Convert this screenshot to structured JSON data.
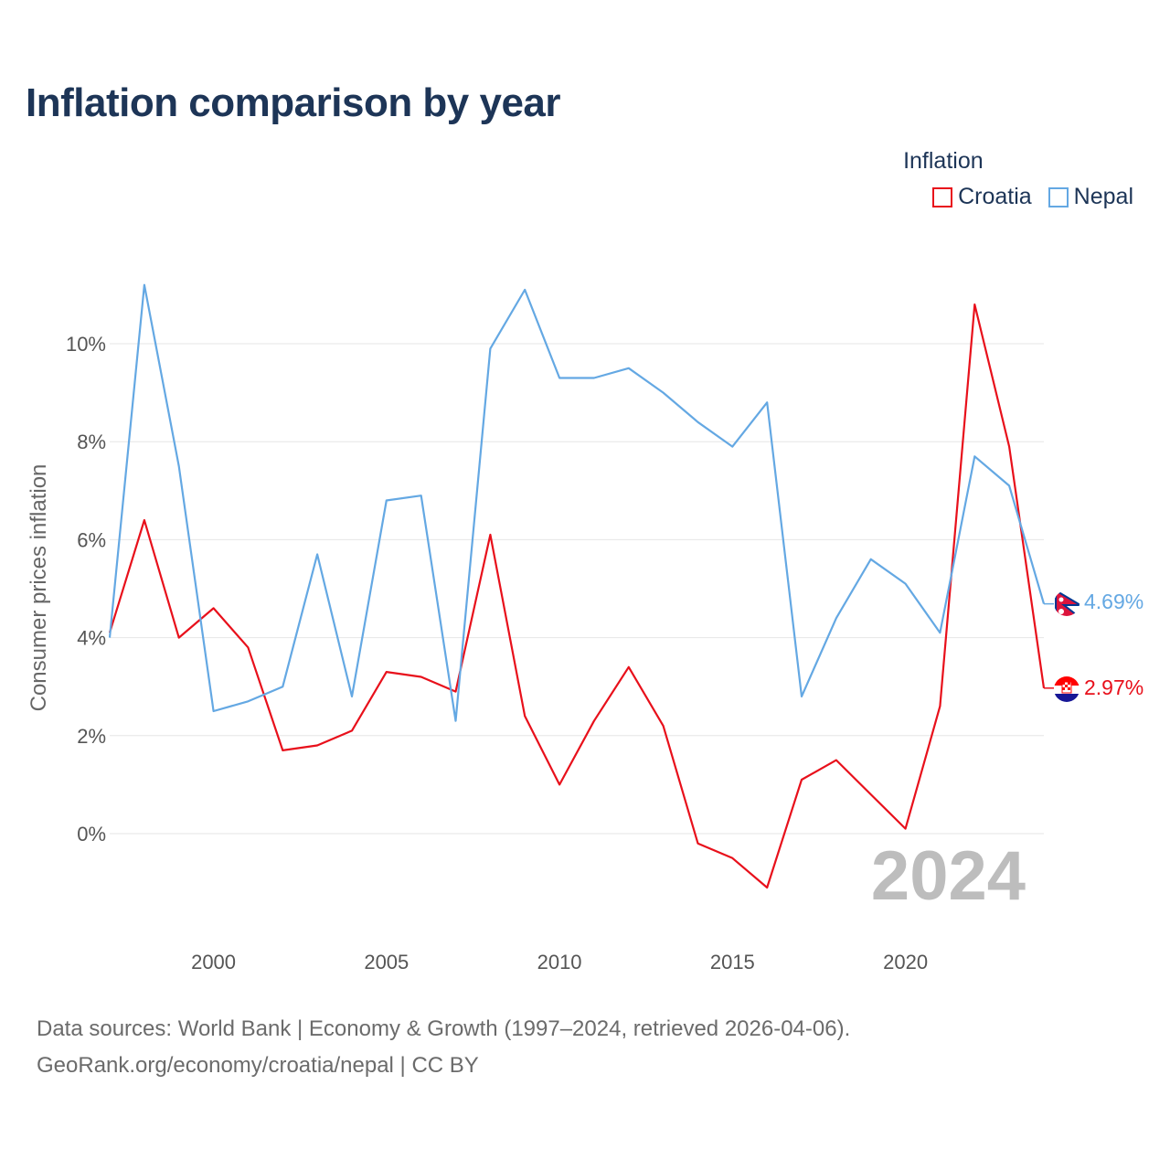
{
  "title": "Inflation comparison by year",
  "legend": {
    "title": "Inflation",
    "items": [
      {
        "label": "Croatia",
        "color": "#e8101b"
      },
      {
        "label": "Nepal",
        "color": "#64a8e3"
      }
    ]
  },
  "footer": {
    "line1": "Data sources: World Bank | Economy & Growth (1997–2024, retrieved 2026-04-06).",
    "line2": "GeoRank.org/economy/croatia/nepal | CC BY"
  },
  "chart_data": {
    "type": "line",
    "title": "Inflation comparison by year",
    "xlabel": "",
    "ylabel": "Consumer prices inflation",
    "xlim": [
      1997,
      2024
    ],
    "ylim": [
      -2.0,
      11.5
    ],
    "x_ticks": [
      2000,
      2005,
      2010,
      2015,
      2020
    ],
    "y_ticks": [
      {
        "value": 0,
        "label": "0%"
      },
      {
        "value": 2,
        "label": "2%"
      },
      {
        "value": 4,
        "label": "4%"
      },
      {
        "value": 6,
        "label": "6%"
      },
      {
        "value": 8,
        "label": "8%"
      },
      {
        "value": 10,
        "label": "10%"
      }
    ],
    "grid": true,
    "legend_position": "top-right",
    "watermark": "2024",
    "x": [
      1997,
      1998,
      1999,
      2000,
      2001,
      2002,
      2003,
      2004,
      2005,
      2006,
      2007,
      2008,
      2009,
      2010,
      2011,
      2012,
      2013,
      2014,
      2015,
      2016,
      2017,
      2018,
      2019,
      2020,
      2021,
      2022,
      2023,
      2024
    ],
    "series": [
      {
        "name": "Croatia",
        "color": "#e8101b",
        "end_label": "2.97%",
        "values": [
          4.1,
          6.4,
          4.0,
          4.6,
          3.8,
          1.7,
          1.8,
          2.1,
          3.3,
          3.2,
          2.9,
          6.1,
          2.4,
          1.0,
          2.3,
          3.4,
          2.2,
          -0.2,
          -0.5,
          -1.1,
          1.1,
          1.5,
          0.8,
          0.1,
          2.6,
          10.8,
          7.9,
          2.97
        ]
      },
      {
        "name": "Nepal",
        "color": "#64a8e3",
        "end_label": "4.69%",
        "values": [
          4.0,
          11.2,
          7.5,
          2.5,
          2.7,
          3.0,
          5.7,
          2.8,
          6.8,
          6.9,
          2.3,
          9.9,
          11.1,
          9.3,
          9.3,
          9.5,
          9.0,
          8.4,
          7.9,
          8.8,
          2.8,
          4.4,
          5.6,
          5.1,
          4.1,
          7.7,
          7.1,
          4.69
        ]
      }
    ]
  }
}
